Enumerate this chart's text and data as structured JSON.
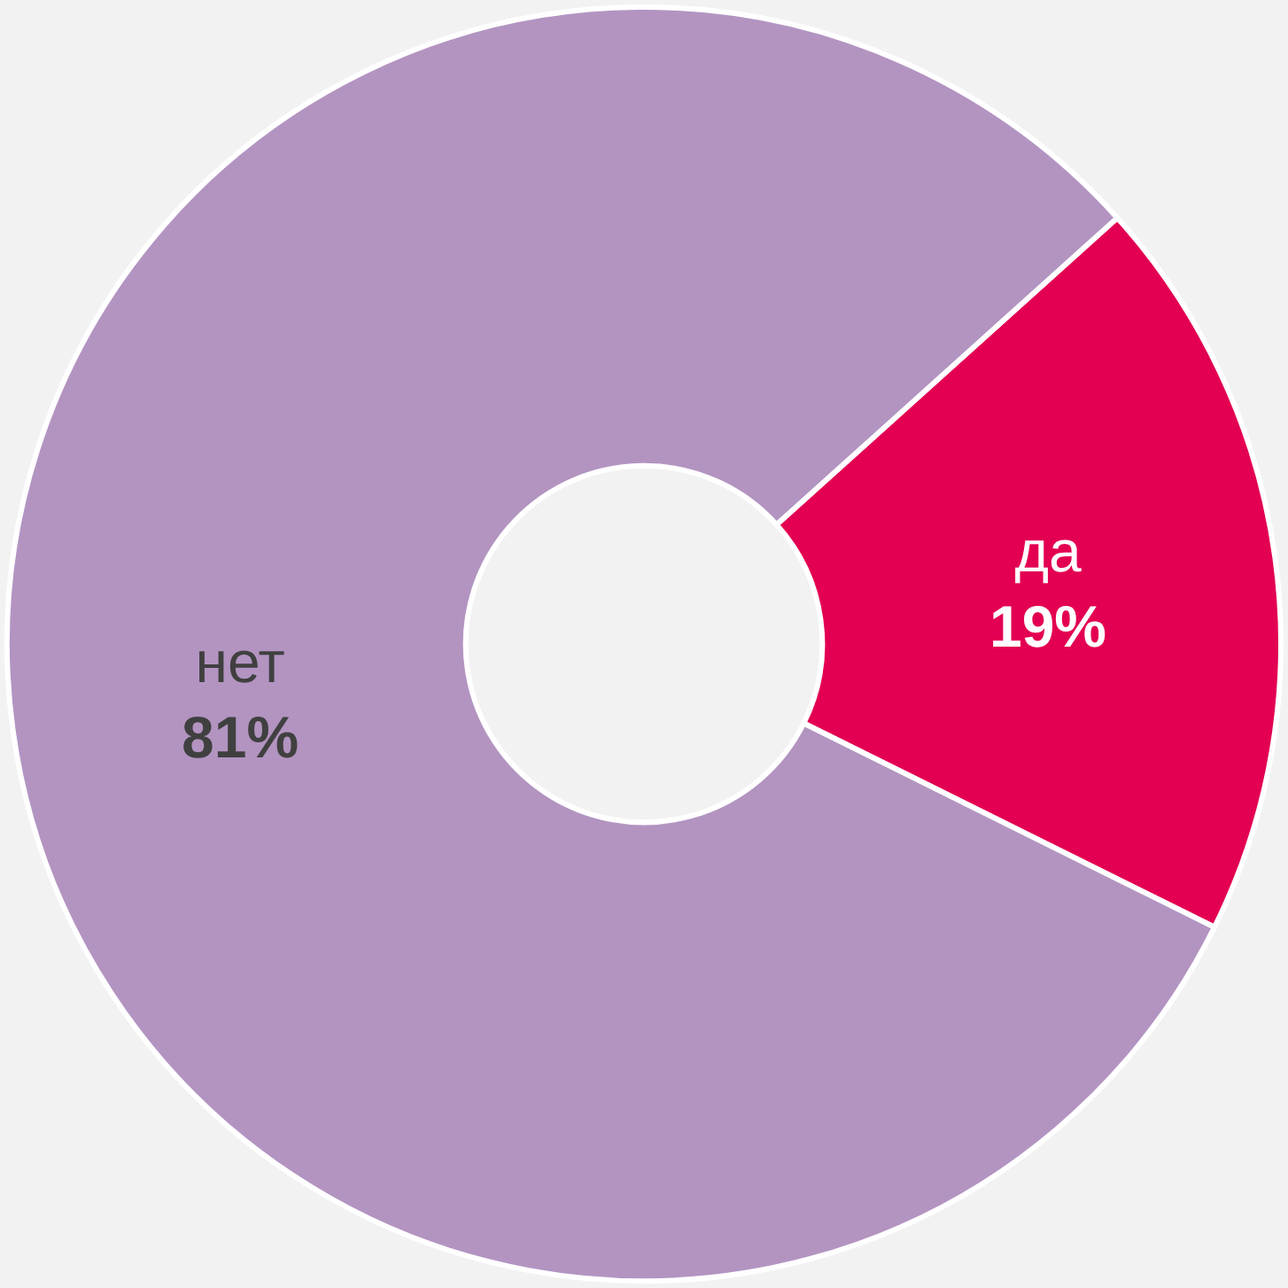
{
  "chart_data": {
    "type": "donut",
    "categories": [
      "да",
      "нет"
    ],
    "values": [
      19,
      81
    ],
    "colors": [
      "#e30052",
      "#b394c1"
    ],
    "value_labels": [
      "19%",
      "81%"
    ],
    "legend": false
  }
}
